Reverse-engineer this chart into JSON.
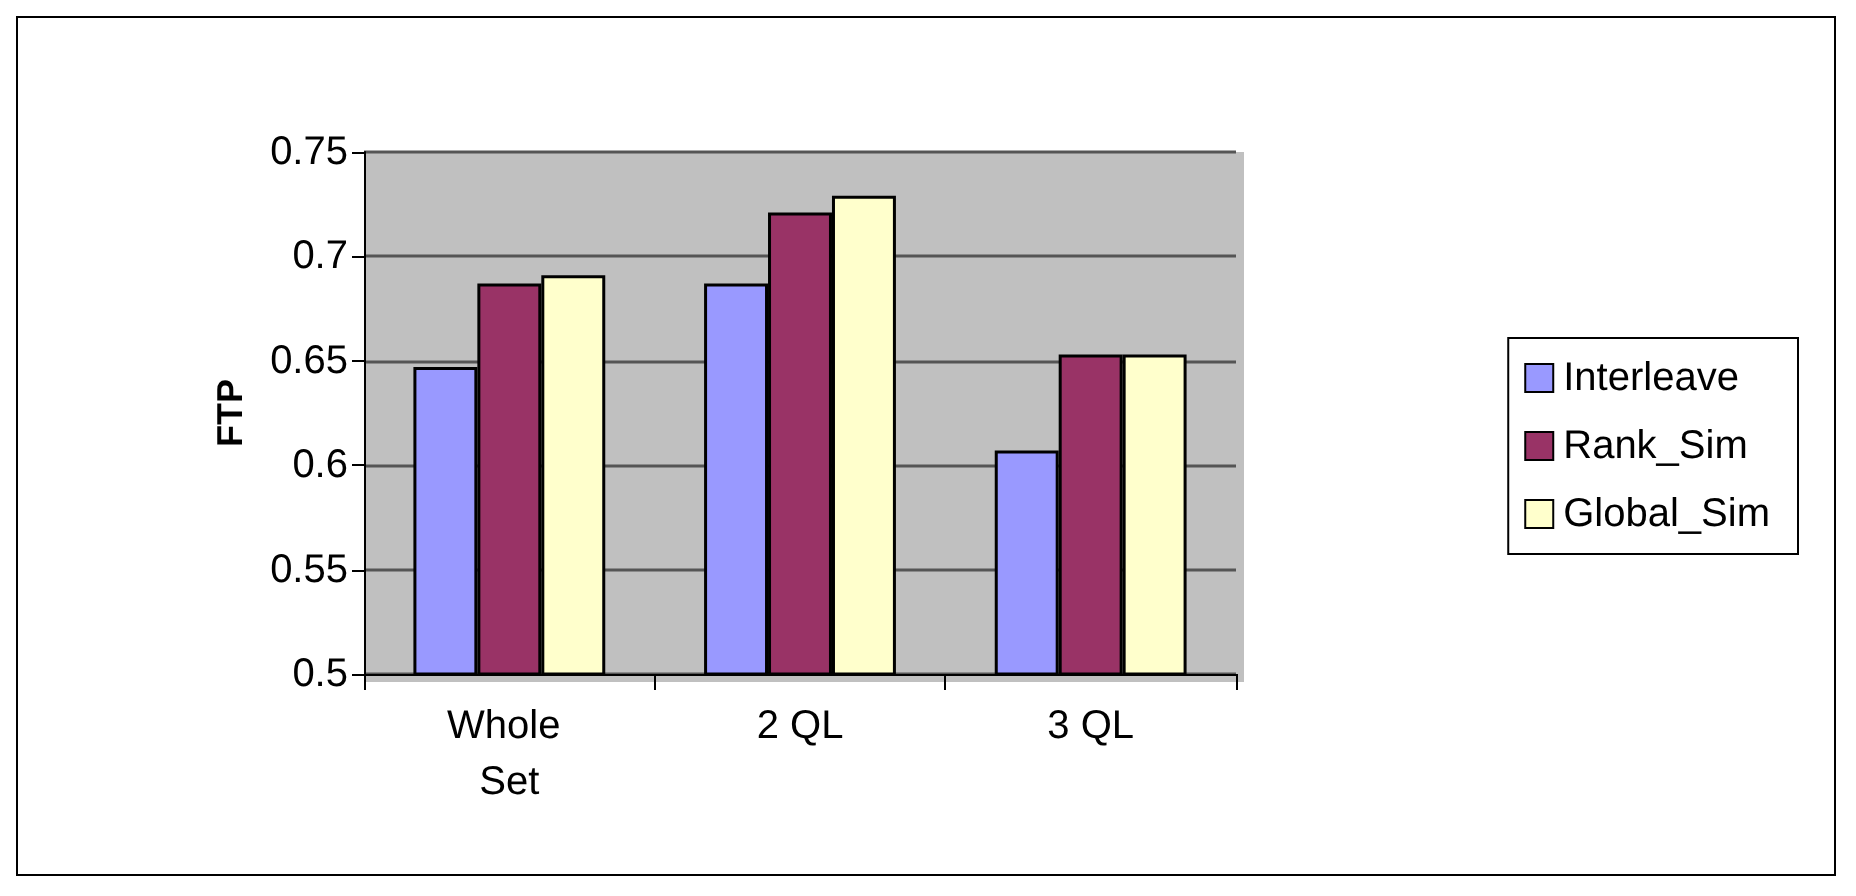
{
  "chart_data": {
    "type": "bar",
    "ylabel": "FTP",
    "categories": [
      "Whole Set",
      "2 QL",
      "3 QL"
    ],
    "series": [
      {
        "name": "Interleave",
        "color": "#9999ff",
        "values": [
          0.647,
          0.687,
          0.607
        ]
      },
      {
        "name": "Rank_Sim",
        "color": "#993366",
        "values": [
          0.687,
          0.721,
          0.653
        ]
      },
      {
        "name": "Global_Sim",
        "color": "#ffffcc",
        "values": [
          0.691,
          0.729,
          0.653
        ]
      }
    ],
    "ylim": [
      0.5,
      0.75
    ],
    "yticks": [
      0.5,
      0.55,
      0.6,
      0.65,
      0.7,
      0.75
    ],
    "grid": "y",
    "legend": "right"
  }
}
